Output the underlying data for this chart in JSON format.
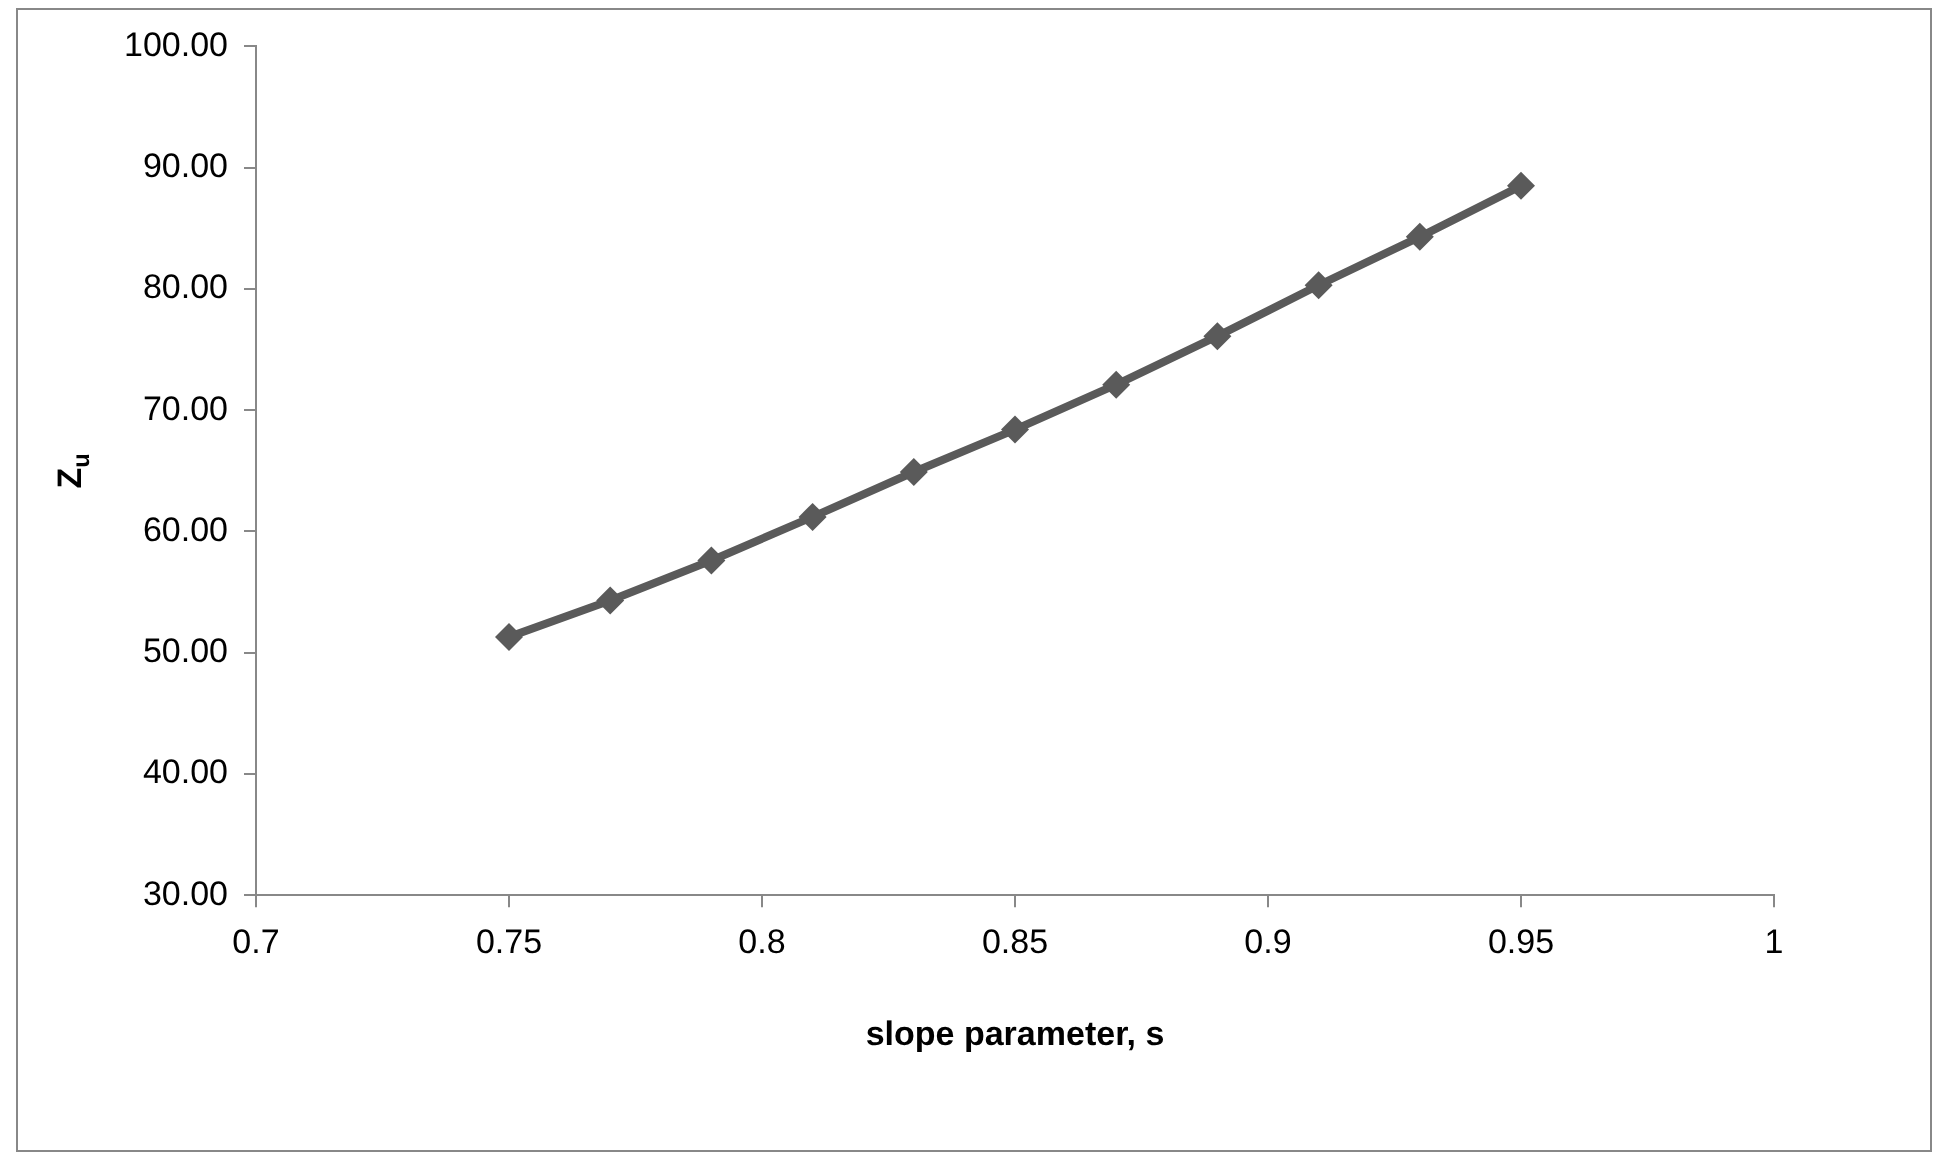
{
  "chart_data": {
    "type": "line",
    "xlabel": "slope parameter, s",
    "ylabel": "Z$_{u}$",
    "x": [
      0.75,
      0.77,
      0.79,
      0.81,
      0.83,
      0.85,
      0.87,
      0.89,
      0.91,
      0.93,
      0.95
    ],
    "series": [
      {
        "color": "#5a5a5a",
        "values": [
          51.3,
          54.3,
          57.6,
          61.2,
          64.9,
          68.4,
          72.1,
          76.1,
          80.3,
          84.3,
          88.5
        ]
      }
    ],
    "xlim": [
      0.7,
      1
    ],
    "xticks": [
      0.7,
      0.75,
      0.8,
      0.85,
      0.9,
      0.95,
      1
    ],
    "ylim": [
      30,
      100
    ],
    "yticks": [
      {
        "value": 30,
        "label": "30.00"
      },
      {
        "value": 40,
        "label": "40.00"
      },
      {
        "value": 50,
        "label": "50.00"
      },
      {
        "value": 60,
        "label": "60.00"
      },
      {
        "value": 70,
        "label": "70.00"
      },
      {
        "value": 80,
        "label": "80.00"
      },
      {
        "value": 90,
        "label": "90.00"
      },
      {
        "value": 100,
        "label": "100.00"
      }
    ],
    "marker": "diamond",
    "line_style": "solid",
    "grid": false,
    "legend": false
  }
}
